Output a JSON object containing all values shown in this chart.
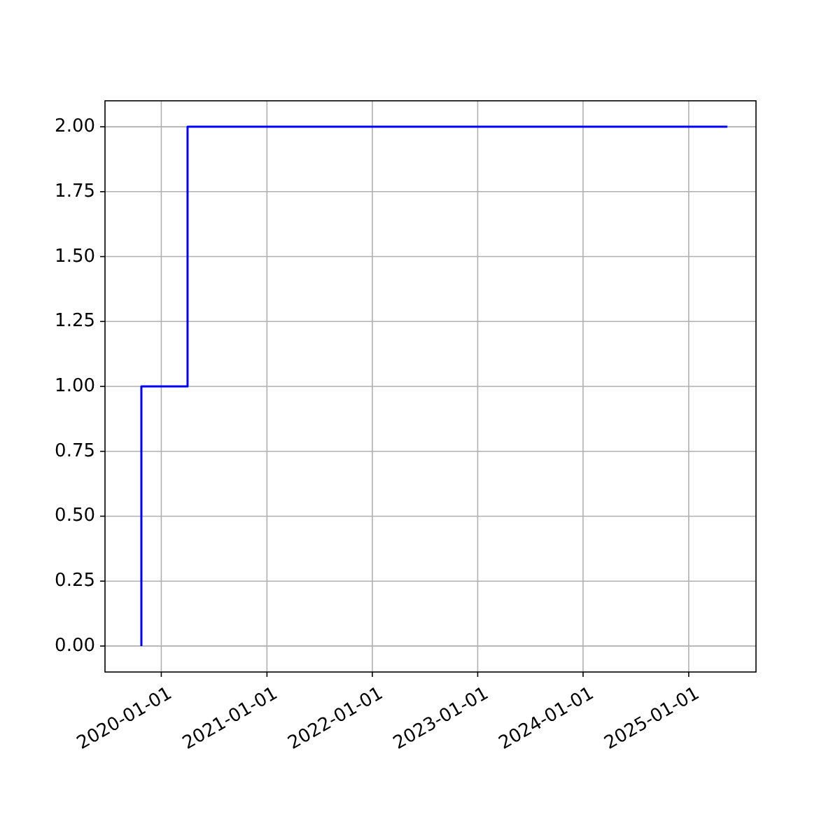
{
  "chart_data": {
    "type": "step",
    "x": [
      "2019-10-24",
      "2019-10-24",
      "2020-04-01",
      "2025-05-15"
    ],
    "series": [
      {
        "color": "#0000ff",
        "values": [
          0,
          1,
          2,
          2
        ]
      }
    ],
    "xlim": [
      "2019-06-20",
      "2025-08-22"
    ],
    "xticks": [
      {
        "value": "2020-01-01",
        "label": "2020-01-01"
      },
      {
        "value": "2021-01-01",
        "label": "2021-01-01"
      },
      {
        "value": "2022-01-01",
        "label": "2022-01-01"
      },
      {
        "value": "2023-01-01",
        "label": "2023-01-01"
      },
      {
        "value": "2024-01-01",
        "label": "2024-01-01"
      },
      {
        "value": "2025-01-01",
        "label": "2025-01-01"
      }
    ],
    "ylim": [
      -0.1,
      2.1
    ],
    "yticks": [
      {
        "value": 0,
        "label": "0.00"
      },
      {
        "value": 0.25,
        "label": "0.25"
      },
      {
        "value": 0.5,
        "label": "0.50"
      },
      {
        "value": 0.75,
        "label": "0.75"
      },
      {
        "value": 1,
        "label": "1.00"
      },
      {
        "value": 1.25,
        "label": "1.25"
      },
      {
        "value": 1.5,
        "label": "1.50"
      },
      {
        "value": 1.75,
        "label": "1.75"
      },
      {
        "value": 2,
        "label": "2.00"
      }
    ],
    "grid": true
  }
}
